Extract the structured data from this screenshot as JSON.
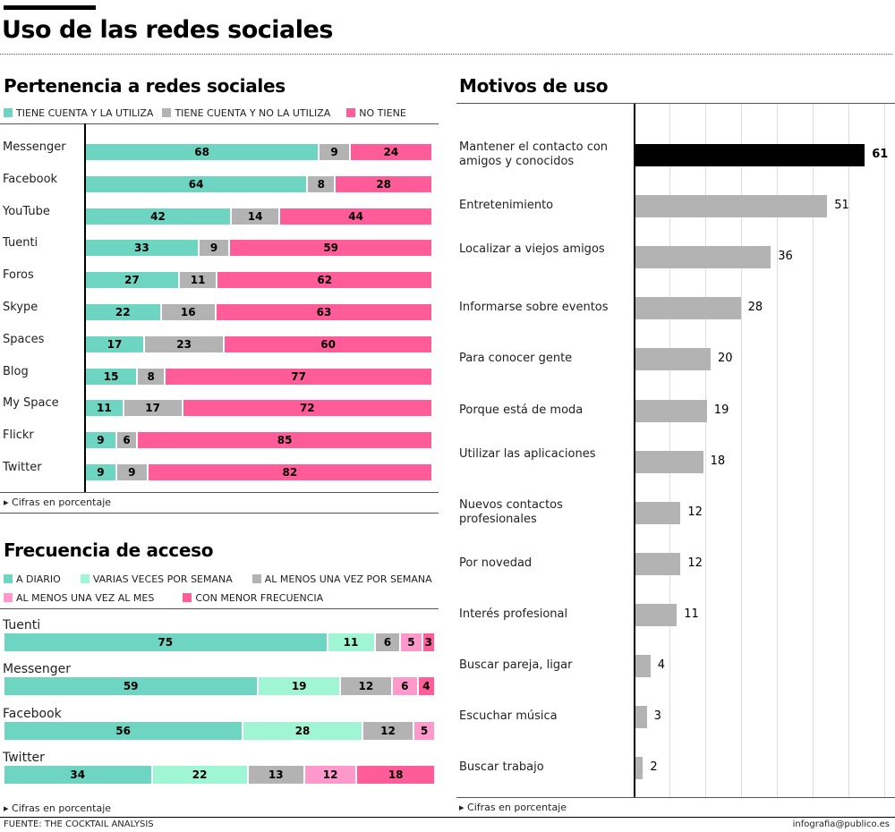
{
  "title": "Uso de las redes sociales",
  "colors": {
    "teal": "#6dd5c1",
    "mint": "#9ff5d4",
    "gray": "#b3b3b3",
    "lightpink": "#ff99cc",
    "pink": "#ff5c99",
    "highlight": "#000000"
  },
  "chart_data": [
    {
      "type": "bar",
      "orientation": "horizontal-stacked",
      "title": "Pertenencia a redes sociales",
      "series_names": [
        "TIENE CUENTA Y LA UTILIZA",
        "TIENE CUENTA Y NO LA UTILIZA",
        "NO TIENE"
      ],
      "categories": [
        "Messenger",
        "Facebook",
        "YouTube",
        "Tuenti",
        "Foros",
        "Skype",
        "Spaces",
        "Blog",
        "My Space",
        "Flickr",
        "Twitter"
      ],
      "values": [
        [
          68,
          9,
          24
        ],
        [
          64,
          8,
          28
        ],
        [
          42,
          14,
          44
        ],
        [
          33,
          9,
          59
        ],
        [
          27,
          11,
          62
        ],
        [
          22,
          16,
          63
        ],
        [
          17,
          23,
          60
        ],
        [
          15,
          8,
          77
        ],
        [
          11,
          17,
          72
        ],
        [
          9,
          6,
          85
        ],
        [
          9,
          9,
          82
        ]
      ],
      "note": "Cifras en porcentaje"
    },
    {
      "type": "bar",
      "orientation": "horizontal-stacked",
      "title": "Frecuencia de acceso",
      "series_names": [
        "A DIARIO",
        "VARIAS VECES POR SEMANA",
        "AL MENOS UNA VEZ POR SEMANA",
        "AL MENOS UNA VEZ AL MES",
        "CON MENOR FRECUENCIA"
      ],
      "categories": [
        "Tuenti",
        "Messenger",
        "Facebook",
        "Twitter"
      ],
      "values": [
        [
          75,
          11,
          6,
          5,
          3
        ],
        [
          59,
          19,
          12,
          6,
          4
        ],
        [
          56,
          28,
          12,
          5,
          0
        ],
        [
          34,
          22,
          13,
          12,
          18
        ]
      ],
      "note": "Cifras en porcentaje"
    },
    {
      "type": "bar",
      "orientation": "horizontal",
      "title": "Motivos de uso",
      "categories": [
        "Mantener el contacto con amigos y conocidos",
        "Entretenimiento",
        "Localizar a viejos amigos",
        "Informarse sobre eventos",
        "Para conocer gente",
        "Porque está de moda",
        "Utilizar las aplicaciones",
        "Nuevos contactos profesionales",
        "Por novedad",
        "Interés profesional",
        "Buscar pareja, ligar",
        "Escuchar música",
        "Buscar trabajo"
      ],
      "values": [
        61,
        51,
        36,
        28,
        20,
        19,
        18,
        12,
        12,
        11,
        4,
        3,
        2
      ],
      "note": "Cifras en porcentaje"
    }
  ],
  "footer": {
    "source": "FUENTE: THE COCKTAIL ANALYSIS",
    "credit": "infografia@publico.es"
  }
}
